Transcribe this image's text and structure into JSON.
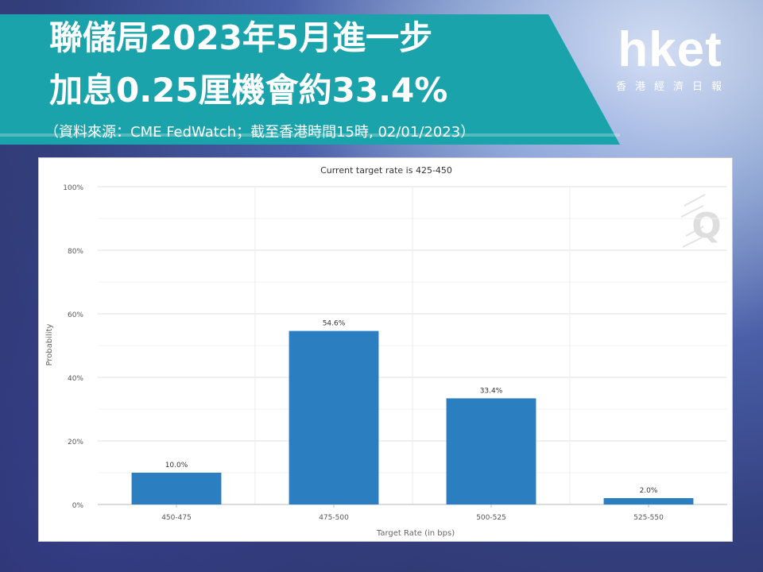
{
  "headline": {
    "line1": "聯儲局2023年5月進一步",
    "line2": "加息0.25厘機會約33.4%",
    "source": "（資料來源：CME FedWatch；截至香港時間15時, 02/01/2023）"
  },
  "logo": {
    "word": "hket",
    "subtitle": "香港經濟日報"
  },
  "colors": {
    "banner": "#1aa3ab",
    "bar": "#2b7fc1"
  },
  "chart_data": {
    "type": "bar",
    "title": "Current target rate is 425-450",
    "xlabel": "Target Rate (in bps)",
    "ylabel": "Probability",
    "categories": [
      "450-475",
      "475-500",
      "500-525",
      "525-550"
    ],
    "values": [
      10.0,
      54.6,
      33.4,
      2.0
    ],
    "data_labels": [
      "10.0%",
      "54.6%",
      "33.4%",
      "2.0%"
    ],
    "ylim": [
      0,
      100
    ],
    "yticks": [
      0,
      20,
      40,
      60,
      80,
      100
    ],
    "ytick_labels": [
      "0%",
      "20%",
      "40%",
      "60%",
      "80%",
      "100%"
    ],
    "grid": true,
    "watermark": "Q"
  }
}
